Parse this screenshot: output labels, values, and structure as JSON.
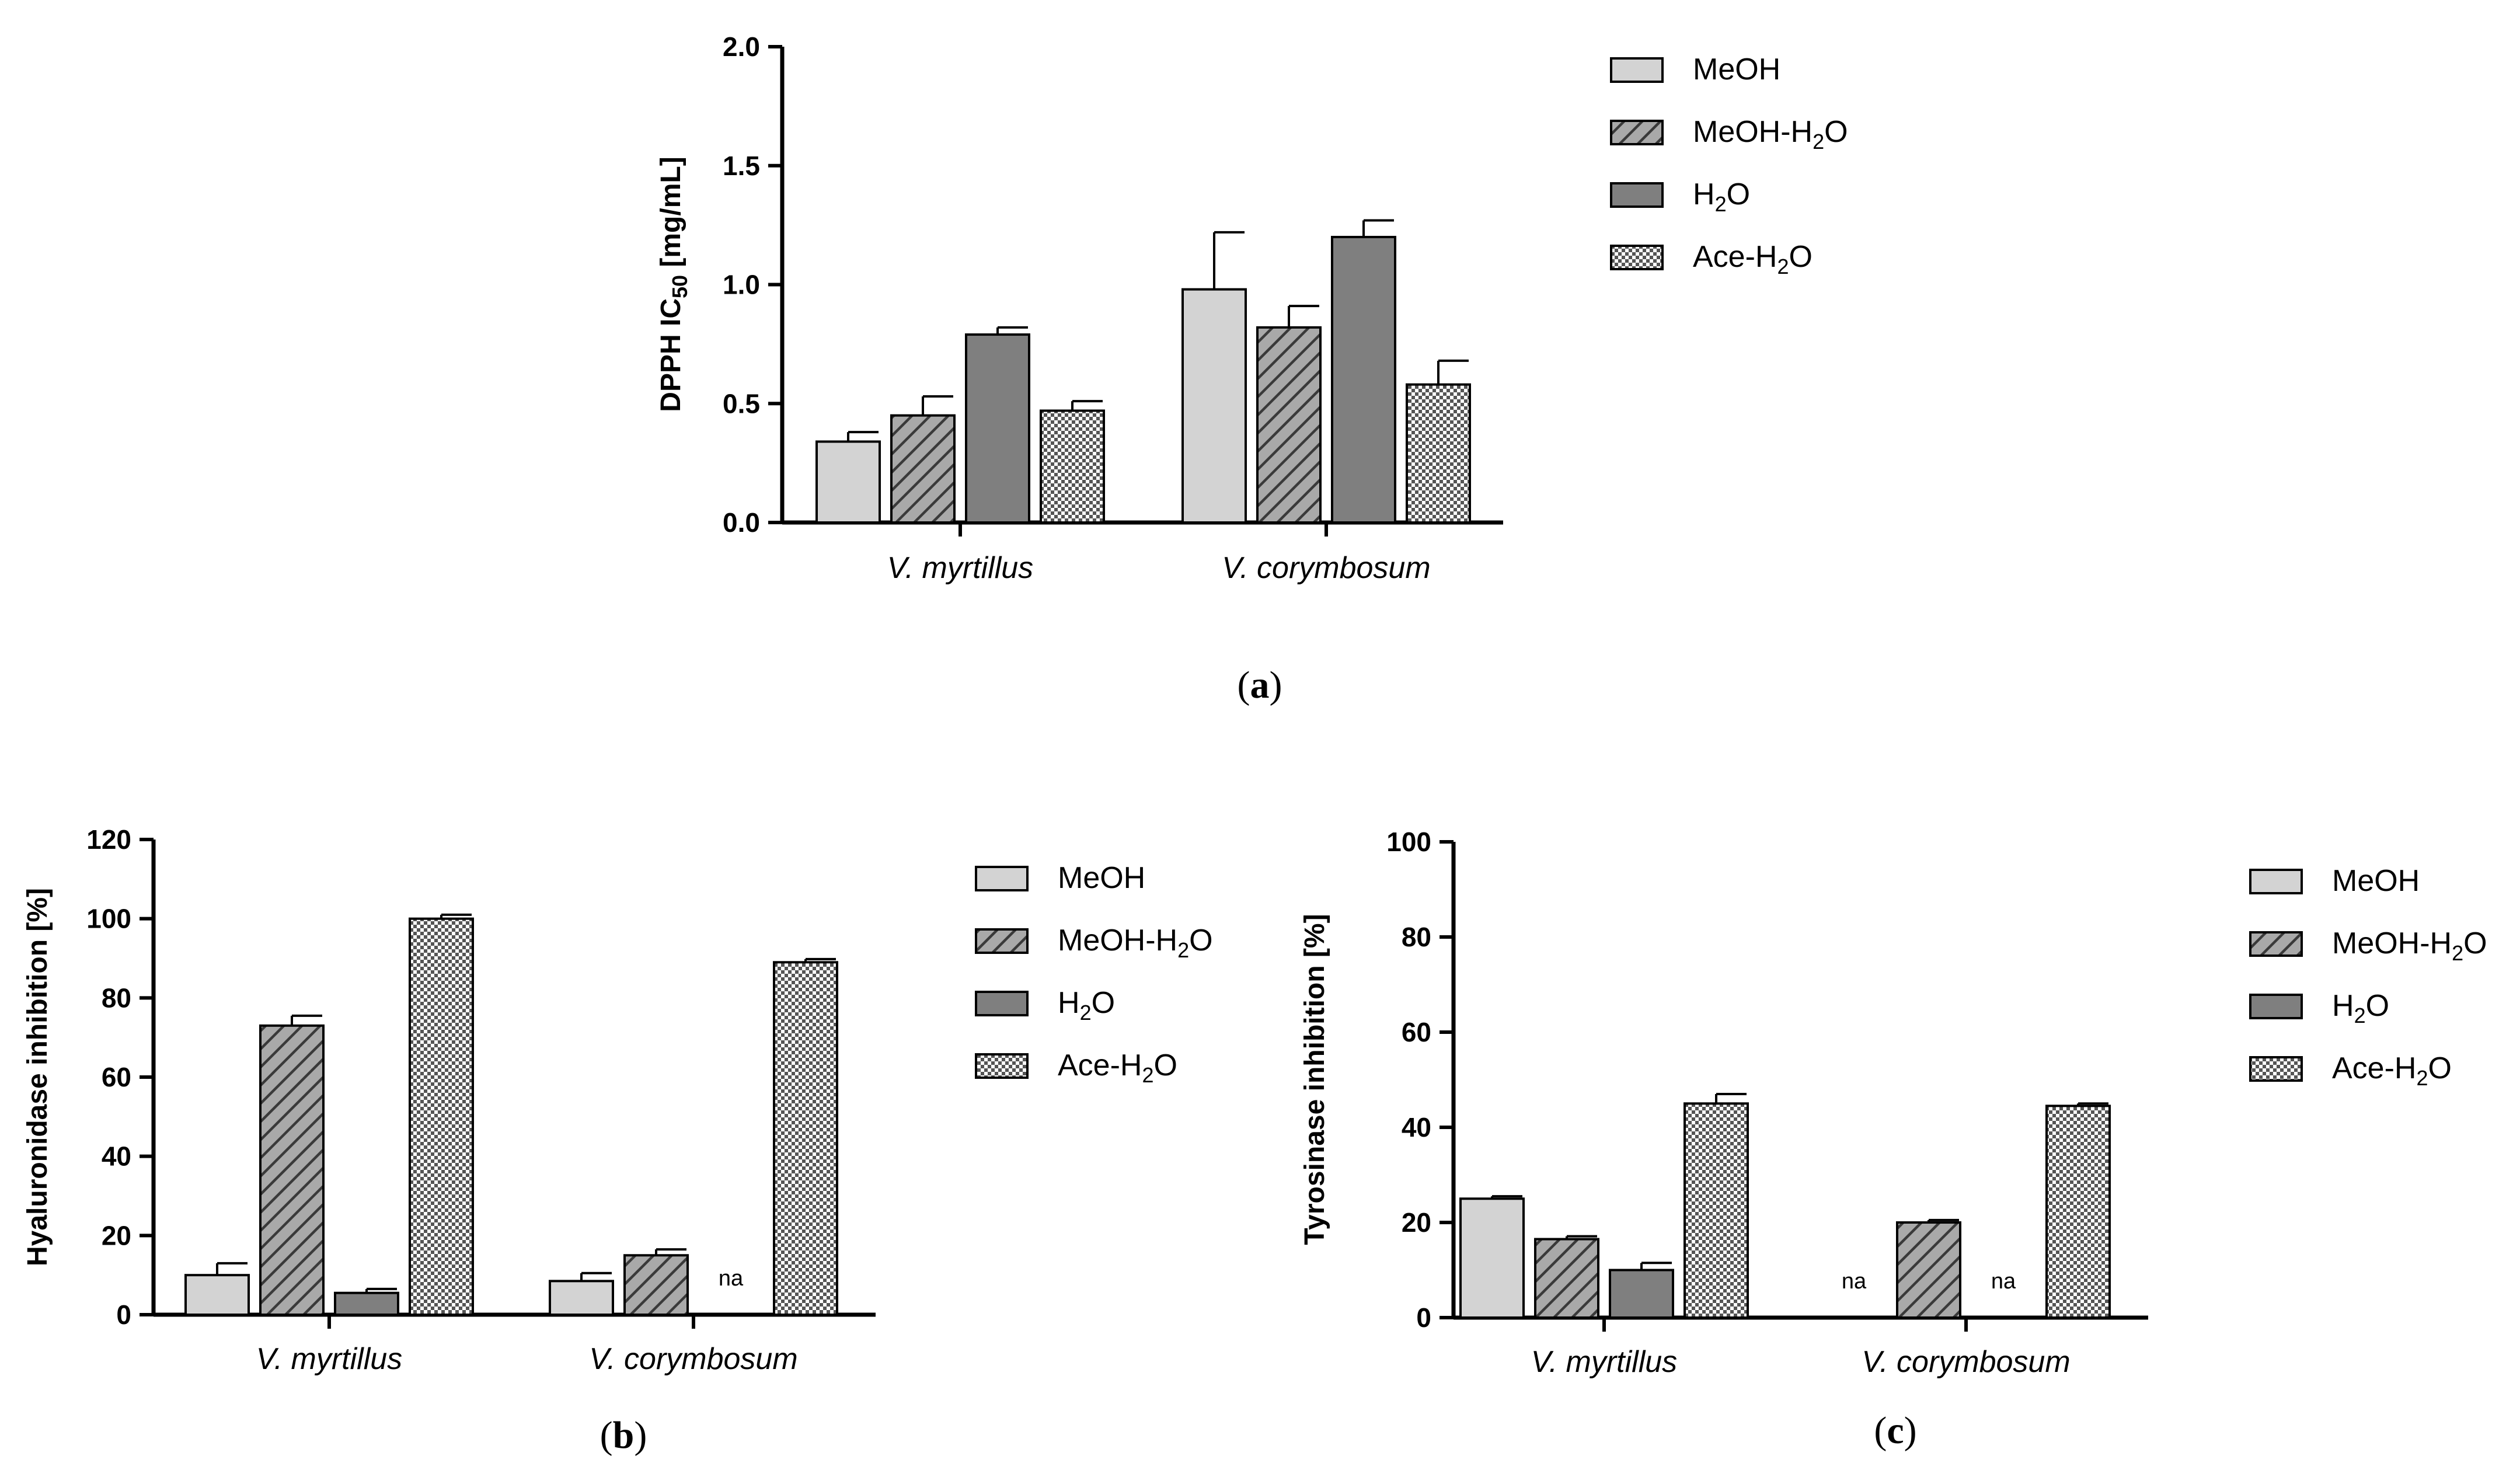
{
  "colors": {
    "MeOH": "#d3d3d3",
    "MeOH-H2O": "#a9a9a9",
    "H2O": "#7f7f7f",
    "Ace-H2O": "#ffffff",
    "hatch": "#444444",
    "check": "#555555"
  },
  "chart_data": [
    {
      "panel": "a",
      "type": "bar",
      "panel_label": "a",
      "ylabel_main": "DPPH IC",
      "ylabel_sub": "50",
      "ylabel_tail": " [mg/mL]",
      "ylim": [
        0,
        2.0
      ],
      "yticks": [
        "0.0",
        "0.5",
        "1.0",
        "1.5",
        "2.0"
      ],
      "ytick_values": [
        0,
        0.5,
        1.0,
        1.5,
        2.0
      ],
      "categories": [
        "V. myrtillus",
        "V. corymbosum"
      ],
      "series": [
        {
          "key": "MeOH",
          "name": "MeOH",
          "values": [
            0.34,
            0.98
          ],
          "errors": [
            0.04,
            0.24
          ]
        },
        {
          "key": "MeOH-H2O",
          "name": "MeOH-H2O",
          "values": [
            0.45,
            0.82
          ],
          "errors": [
            0.08,
            0.09
          ]
        },
        {
          "key": "H2O",
          "name": "H2O",
          "values": [
            0.79,
            1.2
          ],
          "errors": [
            0.03,
            0.07
          ]
        },
        {
          "key": "Ace-H2O",
          "name": "Ace-H2O",
          "values": [
            0.47,
            0.58
          ],
          "errors": [
            0.04,
            0.1
          ]
        }
      ],
      "legend_position": "right"
    },
    {
      "panel": "b",
      "type": "bar",
      "panel_label": "b",
      "ylabel_main": "Hyaluronidase inhibition [%]",
      "ylim": [
        0,
        120
      ],
      "yticks": [
        "0",
        "20",
        "40",
        "60",
        "80",
        "100",
        "120"
      ],
      "ytick_values": [
        0,
        20,
        40,
        60,
        80,
        100,
        120
      ],
      "categories": [
        "V. myrtillus",
        "V. corymbosum"
      ],
      "series": [
        {
          "key": "MeOH",
          "name": "MeOH",
          "values": [
            10,
            8.5
          ],
          "errors": [
            3,
            2
          ]
        },
        {
          "key": "MeOH-H2O",
          "name": "MeOH-H2O",
          "values": [
            73,
            15
          ],
          "errors": [
            2.5,
            1.5
          ]
        },
        {
          "key": "H2O",
          "name": "H2O",
          "values": [
            5.5,
            null
          ],
          "errors": [
            1,
            null
          ]
        },
        {
          "key": "Ace-H2O",
          "name": "Ace-H2O",
          "values": [
            100,
            89
          ],
          "errors": [
            1,
            0.8
          ]
        }
      ],
      "na_label": "na",
      "legend_position": "right"
    },
    {
      "panel": "c",
      "type": "bar",
      "panel_label": "c",
      "ylabel_main": "Tyrosinase inhibition [%]",
      "ylim": [
        0,
        100
      ],
      "yticks": [
        "0",
        "20",
        "40",
        "60",
        "80",
        "100"
      ],
      "ytick_values": [
        0,
        20,
        40,
        60,
        80,
        100
      ],
      "categories": [
        "V. myrtillus",
        "V. corymbosum"
      ],
      "series": [
        {
          "key": "MeOH",
          "name": "MeOH",
          "values": [
            25,
            null
          ],
          "errors": [
            0.5,
            null
          ]
        },
        {
          "key": "MeOH-H2O",
          "name": "MeOH-H2O",
          "values": [
            16.5,
            20
          ],
          "errors": [
            0.6,
            0.5
          ]
        },
        {
          "key": "H2O",
          "name": "H2O",
          "values": [
            10,
            null
          ],
          "errors": [
            1.5,
            null
          ]
        },
        {
          "key": "Ace-H2O",
          "name": "Ace-H2O",
          "values": [
            45,
            44.5
          ],
          "errors": [
            2,
            0.5
          ]
        }
      ],
      "na_label": "na",
      "legend_position": "right"
    }
  ],
  "legend_labels": {
    "MeOH": "MeOH",
    "MeOH-H2O": {
      "pre": "MeOH-H",
      "sub": "2",
      "post": "O"
    },
    "H2O": {
      "pre": "H",
      "sub": "2",
      "post": "O"
    },
    "Ace-H2O": {
      "pre": "Ace-H",
      "sub": "2",
      "post": "O"
    }
  }
}
